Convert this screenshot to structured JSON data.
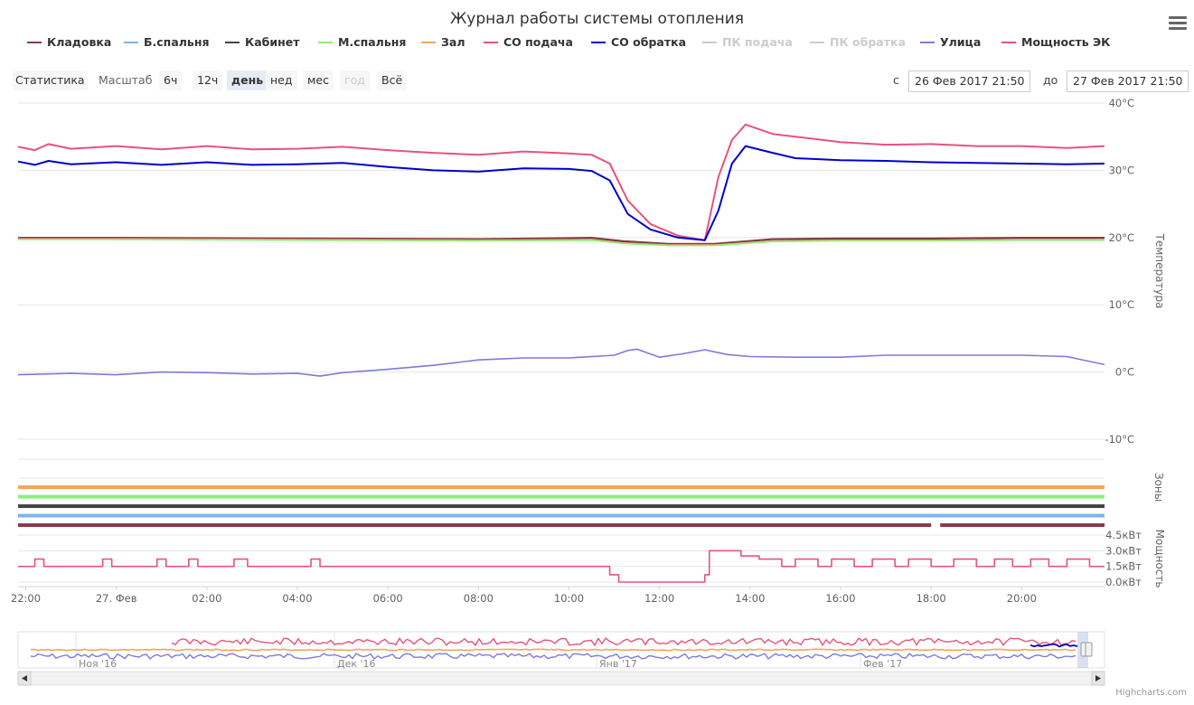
{
  "chart_data": {
    "type": "line",
    "title": "Журнал работы системы отопления",
    "legend": [
      {
        "name": "Кладовка",
        "color": "#8b3a4a",
        "visible": true
      },
      {
        "name": "Б.спальня",
        "color": "#7cb5ec",
        "visible": true
      },
      {
        "name": "Кабинет",
        "color": "#434348",
        "visible": true
      },
      {
        "name": "М.спальня",
        "color": "#90ed7d",
        "visible": true
      },
      {
        "name": "Зал",
        "color": "#f7a35c",
        "visible": true
      },
      {
        "name": "СО подача",
        "color": "#e8537a",
        "visible": true
      },
      {
        "name": "СО обратка",
        "color": "#0000cc",
        "visible": true
      },
      {
        "name": "ПК подача",
        "color": "#cccccc",
        "visible": false
      },
      {
        "name": "ПК обратка",
        "color": "#cccccc",
        "visible": false
      },
      {
        "name": "Улица",
        "color": "#7b7bdc",
        "visible": true
      },
      {
        "name": "Мощность ЭК",
        "color": "#e8537a",
        "visible": true
      }
    ],
    "x_axis": {
      "range_hours": [
        -2.17,
        21.83
      ],
      "ticks": [
        {
          "h": -2,
          "label": "22:00"
        },
        {
          "h": 0,
          "label": "27. Фев"
        },
        {
          "h": 2,
          "label": "02:00"
        },
        {
          "h": 4,
          "label": "04:00"
        },
        {
          "h": 6,
          "label": "06:00"
        },
        {
          "h": 8,
          "label": "08:00"
        },
        {
          "h": 10,
          "label": "10:00"
        },
        {
          "h": 12,
          "label": "12:00"
        },
        {
          "h": 14,
          "label": "14:00"
        },
        {
          "h": 16,
          "label": "16:00"
        },
        {
          "h": 18,
          "label": "18:00"
        },
        {
          "h": 20,
          "label": "20:00"
        }
      ]
    },
    "temp_axis": {
      "title": "Температура",
      "min": -10,
      "max": 40,
      "ticks": [
        "40°C",
        "30°C",
        "20°C",
        "10°C",
        "0°C",
        "-10°C"
      ],
      "tick_values": [
        40,
        30,
        20,
        10,
        0,
        -10
      ]
    },
    "zones_axis": {
      "title": "Зоны"
    },
    "power_axis": {
      "title": "Мощность",
      "min": 0,
      "max": 4.5,
      "ticks": [
        "4.5кВт",
        "3.0кВт",
        "1.5кВт",
        "0.0кВт"
      ],
      "tick_values": [
        4.5,
        3.0,
        1.5,
        0.0
      ]
    },
    "series": [
      {
        "name": "СО подача",
        "color": "#e8537a",
        "x": [
          -2.17,
          -1.8,
          -1.5,
          -1,
          0,
          1,
          2,
          3,
          4,
          5,
          6,
          7,
          8,
          9,
          10,
          10.5,
          10.9,
          11.3,
          11.8,
          12.4,
          13.0,
          13.3,
          13.6,
          13.9,
          14.5,
          15,
          16,
          17,
          18,
          19,
          20,
          21,
          21.83
        ],
        "y": [
          33.5,
          33.0,
          33.9,
          33.2,
          33.6,
          33.1,
          33.6,
          33.1,
          33.2,
          33.5,
          33.0,
          32.6,
          32.3,
          32.8,
          32.5,
          32.3,
          31.0,
          25.5,
          22.0,
          20.3,
          19.6,
          29.0,
          34.5,
          36.8,
          35.4,
          35.0,
          34.2,
          33.8,
          33.9,
          33.6,
          33.6,
          33.3,
          33.6
        ]
      },
      {
        "name": "СО обратка",
        "color": "#0000cc",
        "x": [
          -2.17,
          -1.8,
          -1.5,
          -1,
          0,
          1,
          2,
          3,
          4,
          5,
          6,
          7,
          8,
          9,
          10,
          10.5,
          10.9,
          11.3,
          11.8,
          12.4,
          13.0,
          13.3,
          13.6,
          13.9,
          14.5,
          15,
          16,
          17,
          18,
          19,
          20,
          21,
          21.83
        ],
        "y": [
          31.3,
          30.8,
          31.4,
          30.9,
          31.2,
          30.8,
          31.2,
          30.8,
          30.9,
          31.1,
          30.5,
          30.0,
          29.8,
          30.3,
          30.2,
          29.9,
          28.5,
          23.5,
          21.2,
          20.0,
          19.6,
          24.0,
          31.0,
          33.6,
          32.6,
          31.8,
          31.5,
          31.4,
          31.2,
          31.1,
          31.0,
          30.9,
          31.0
        ]
      },
      {
        "name": "Кабинет",
        "color": "#434348",
        "x": [
          -2.17,
          0,
          4,
          8,
          10.5,
          11.2,
          12.2,
          13.2,
          14.5,
          16,
          18,
          20,
          21.83
        ],
        "y": [
          19.9,
          19.9,
          19.8,
          19.7,
          19.9,
          19.4,
          19.0,
          19.0,
          19.7,
          19.8,
          19.8,
          19.9,
          19.9
        ]
      },
      {
        "name": "Кладовка",
        "color": "#8b3a4a",
        "x": [
          -2.17,
          0,
          4,
          8,
          10.5,
          11.2,
          12.2,
          13.2,
          14.5,
          16,
          18,
          20,
          21.83
        ],
        "y": [
          20.0,
          20.0,
          19.9,
          19.8,
          20.0,
          19.5,
          19.1,
          19.1,
          19.8,
          19.9,
          19.9,
          20.0,
          20.0
        ]
      },
      {
        "name": "Зал",
        "color": "#f7a35c",
        "x": [
          -2.17,
          0,
          4,
          8,
          10.5,
          11.2,
          12.2,
          13.2,
          14.5,
          16,
          18,
          20,
          21.83
        ],
        "y": [
          19.8,
          19.8,
          19.7,
          19.6,
          19.7,
          19.2,
          18.9,
          18.9,
          19.5,
          19.6,
          19.6,
          19.7,
          19.7
        ]
      },
      {
        "name": "М.спальня",
        "color": "#90ed7d",
        "x": [
          -2.17,
          0,
          4,
          8,
          10.5,
          11.2,
          12.2,
          13.2,
          14.5,
          16,
          18,
          20,
          21.83
        ],
        "y": [
          19.7,
          19.7,
          19.6,
          19.5,
          19.6,
          19.1,
          18.8,
          18.8,
          19.4,
          19.5,
          19.5,
          19.6,
          19.6
        ]
      },
      {
        "name": "Улица",
        "color": "#7b7bdc",
        "x": [
          -2.17,
          -1,
          0,
          1,
          2,
          3,
          4,
          4.5,
          5,
          6,
          7,
          8,
          9,
          10,
          11,
          11.3,
          11.5,
          12,
          12.5,
          13,
          13.5,
          14,
          15,
          16,
          17,
          18,
          19,
          20,
          21,
          21.83
        ],
        "y": [
          -0.4,
          -0.2,
          -0.4,
          0,
          -0.1,
          -0.3,
          -0.2,
          -0.6,
          -0.1,
          0.4,
          1.0,
          1.8,
          2.1,
          2.1,
          2.5,
          3.2,
          3.4,
          2.2,
          2.7,
          3.3,
          2.6,
          2.3,
          2.2,
          2.2,
          2.5,
          2.5,
          2.5,
          2.5,
          2.3,
          1.1
        ]
      },
      {
        "name": "Мощность ЭК",
        "color": "#e8537a",
        "type": "step",
        "x": [
          -2.17,
          -1.8,
          -1.6,
          -0.3,
          -0.1,
          0.9,
          1.1,
          1.6,
          1.8,
          2.6,
          2.9,
          4.3,
          4.5,
          10.9,
          11.1,
          13.0,
          13.1,
          13.8,
          14.2,
          14.7,
          15.0,
          15.5,
          15.8,
          16.3,
          16.7,
          17.2,
          17.5,
          18.0,
          18.5,
          19.0,
          19.4,
          19.8,
          20.2,
          20.6,
          21.0,
          21.5,
          21.83
        ],
        "y": [
          1.5,
          2.2,
          1.5,
          2.2,
          1.5,
          2.2,
          1.5,
          2.2,
          1.5,
          2.2,
          1.5,
          2.2,
          1.5,
          0.7,
          0.0,
          0.7,
          3.0,
          2.5,
          2.2,
          1.5,
          2.2,
          1.5,
          2.2,
          1.5,
          2.2,
          1.5,
          2.2,
          1.5,
          2.2,
          1.5,
          2.2,
          1.5,
          2.2,
          1.5,
          2.2,
          1.5,
          1.5
        ]
      }
    ],
    "zones": [
      {
        "name": "Зал",
        "color": "#f7a35c"
      },
      {
        "name": "М.спальня",
        "color": "#90ed7d"
      },
      {
        "name": "Кабинет",
        "color": "#434348"
      },
      {
        "name": "Б.спальня",
        "color": "#7cb5ec"
      },
      {
        "name": "Кладовка",
        "color": "#8b3a4a",
        "gap_hours": [
          18.0,
          18.2
        ]
      }
    ],
    "navigator": {
      "labels": [
        "Ноя '16",
        "Дек '16",
        "Янв '17",
        "Фев '17"
      ]
    }
  },
  "controls": {
    "statistics_label": "Статистика",
    "zoom_label": "Масштаб",
    "zoom_buttons": [
      {
        "label": "6ч",
        "state": "normal"
      },
      {
        "label": "12ч",
        "state": "normal"
      },
      {
        "label": "день",
        "state": "active"
      },
      {
        "label": "нед",
        "state": "normal"
      },
      {
        "label": "мес",
        "state": "normal"
      },
      {
        "label": "год",
        "state": "disabled"
      },
      {
        "label": "Всё",
        "state": "normal"
      }
    ],
    "from_label": "с",
    "from_value": "26 Фев 2017 21:50",
    "to_label": "до",
    "to_value": "27 Фев 2017 21:50"
  },
  "credits": "Highcharts.com"
}
